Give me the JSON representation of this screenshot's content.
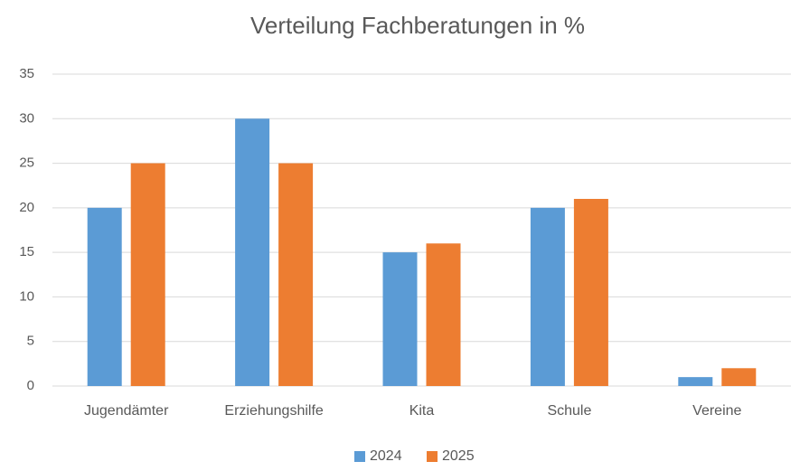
{
  "chart_data": {
    "type": "bar",
    "title": "Verteilung Fachberatungen in %",
    "categories": [
      "Jugendämter",
      "Erziehungshilfe",
      "Kita",
      "Schule",
      "Vereine"
    ],
    "series": [
      {
        "name": "2024",
        "color": "#5b9bd5",
        "values": [
          20,
          30,
          15,
          20,
          1
        ]
      },
      {
        "name": "2025",
        "color": "#ed7d31",
        "values": [
          25,
          25,
          16,
          21,
          2
        ]
      }
    ],
    "ylim": [
      0,
      35
    ],
    "yticks": [
      0,
      5,
      10,
      15,
      20,
      25,
      30,
      35
    ],
    "grid": true,
    "legend": "bottom"
  }
}
